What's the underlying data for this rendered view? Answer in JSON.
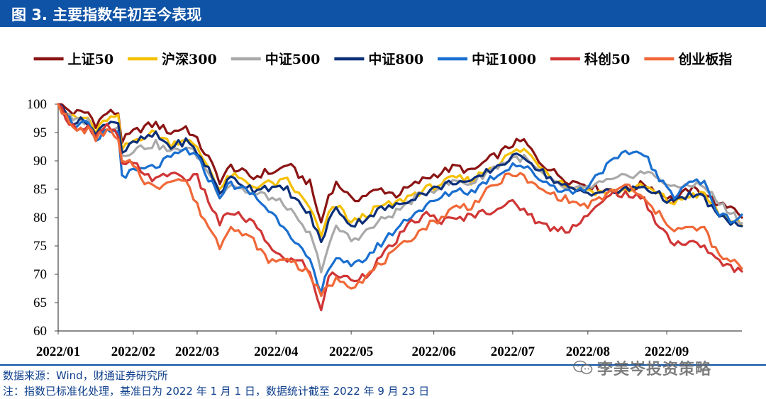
{
  "title": "图 3. 主要指数年初至今表现",
  "footer": {
    "source": "数据来源：Wind，财通证券研究所",
    "note": "注：指数已标准化处理，基准日为 2022 年 1 月 1 日，数据统计截至 2022 年 9 月 23 日"
  },
  "watermark": {
    "text": "李美岑投资策略",
    "icon": "wechat-icon"
  },
  "chart_data": {
    "type": "line",
    "title": "主要指数年初至今表现",
    "xlabel": "",
    "ylabel": "",
    "ylim": [
      60,
      100
    ],
    "yticks": [
      60,
      65,
      70,
      75,
      80,
      85,
      90,
      95,
      100
    ],
    "xlim": [
      0,
      182
    ],
    "xtick_labels": [
      "2022/01",
      "2022/02",
      "2022/03",
      "2022/04",
      "2022/05",
      "2022/06",
      "2022/07",
      "2022/08",
      "2022/09"
    ],
    "xtick_positions": [
      0,
      20,
      37,
      58,
      78,
      100,
      121,
      141,
      162
    ],
    "anchors": [
      0,
      4,
      8,
      10,
      13,
      16,
      17,
      20,
      23,
      26,
      30,
      34,
      37,
      40,
      43,
      46,
      49,
      52,
      55,
      58,
      61,
      64,
      67,
      70,
      72,
      74,
      76,
      78,
      82,
      86,
      90,
      94,
      98,
      102,
      106,
      110,
      114,
      118,
      121,
      124,
      128,
      132,
      136,
      140,
      144,
      148,
      152,
      156,
      160,
      164,
      168,
      172,
      176,
      180,
      182
    ],
    "grid": false,
    "legend_position": "top",
    "series": [
      {
        "name": "上证50",
        "color": "#8b1414",
        "values": [
          100,
          98.5,
          98.5,
          96.5,
          98.5,
          98.5,
          93.5,
          95,
          96,
          96.5,
          95,
          96,
          93.5,
          90.5,
          86.5,
          89,
          88,
          87,
          88,
          88,
          89.5,
          87.5,
          86,
          79,
          84,
          86,
          85,
          83,
          84,
          85,
          84,
          85.5,
          87,
          88,
          89,
          88,
          90,
          91.5,
          93,
          93.5,
          90,
          88,
          86.5,
          86,
          85,
          85,
          85,
          86,
          84.5,
          83,
          85,
          84.5,
          82,
          82,
          80
        ]
      },
      {
        "name": "沪深300",
        "color": "#f5c000",
        "values": [
          100,
          97.5,
          97.5,
          95,
          97.5,
          97.5,
          92,
          93.5,
          94.5,
          95,
          93,
          94,
          92,
          89,
          85,
          87.5,
          86.5,
          85.5,
          86,
          86,
          86.5,
          84,
          82,
          76.5,
          80.5,
          82,
          81,
          79,
          80.5,
          82,
          82.5,
          84,
          85,
          86,
          87,
          86.5,
          88.5,
          90,
          91.5,
          92,
          89.5,
          87,
          85.5,
          85,
          84.5,
          84.5,
          85,
          85.5,
          84,
          82.5,
          84,
          84,
          80.5,
          79.5,
          78.5
        ]
      },
      {
        "name": "中证500",
        "color": "#a9a9a9",
        "values": [
          100,
          97,
          97,
          94,
          96,
          96,
          91,
          92,
          92.5,
          93,
          91.5,
          92.5,
          91,
          88,
          84,
          86,
          85,
          84,
          84,
          83,
          82,
          79,
          77,
          71,
          75,
          78,
          77.5,
          76,
          77.5,
          79.5,
          81,
          83,
          84.5,
          85.5,
          86.5,
          86,
          88,
          89.5,
          90.5,
          90.5,
          88,
          86,
          85,
          85,
          86,
          86.5,
          87.5,
          88,
          87,
          85,
          86,
          85.5,
          82.5,
          80.5,
          79
        ]
      },
      {
        "name": "中证800",
        "color": "#0c2f78",
        "values": [
          100,
          97,
          97,
          94.5,
          97,
          97,
          91.5,
          93,
          94,
          94.5,
          92.5,
          93.5,
          91.5,
          88.5,
          84.5,
          87,
          86,
          85,
          85.5,
          85,
          85,
          82.5,
          80.5,
          75.5,
          79.5,
          81.5,
          80.5,
          78.5,
          80,
          81.5,
          82,
          83.5,
          84.5,
          85.5,
          86.5,
          86,
          88,
          89.5,
          90.5,
          91,
          88.5,
          86.5,
          85,
          84.5,
          84.5,
          84.5,
          85,
          85.5,
          84,
          82.5,
          84,
          83.5,
          80,
          79,
          78.5
        ]
      },
      {
        "name": "中证1000",
        "color": "#1a6fd0",
        "values": [
          100,
          96.5,
          96.5,
          93,
          95.5,
          95,
          87.5,
          88,
          88.5,
          89,
          90.5,
          92,
          90.5,
          87,
          84,
          86,
          85,
          84,
          82,
          80,
          78,
          75,
          72,
          66.5,
          71.5,
          73,
          72.5,
          71,
          73,
          75.5,
          78,
          80.5,
          82,
          83.5,
          85,
          84.5,
          86.5,
          88,
          89.5,
          89,
          87,
          85.5,
          84.5,
          85,
          88,
          90,
          91.5,
          91.5,
          86.5,
          84,
          86.5,
          86,
          80.5,
          79.5,
          80.5
        ]
      },
      {
        "name": "科创50",
        "color": "#d03535",
        "values": [
          100,
          96,
          96,
          94,
          96,
          94.5,
          89,
          89.5,
          88,
          86.5,
          88,
          87,
          87,
          83,
          79,
          81,
          80,
          79,
          76,
          74,
          72,
          73,
          70,
          64,
          69.5,
          70,
          69.5,
          69,
          70,
          73,
          76,
          79,
          80.5,
          79.5,
          79.5,
          80.5,
          81,
          82,
          82.5,
          81.5,
          79,
          78,
          78,
          80,
          82,
          84.5,
          84,
          83,
          78.5,
          75.5,
          75.5,
          75,
          72,
          71,
          70.5
        ]
      },
      {
        "name": "创业板指",
        "color": "#f06838",
        "values": [
          100,
          95.5,
          95.5,
          94,
          95.5,
          93.5,
          89.5,
          89.5,
          86.5,
          85,
          87,
          86.5,
          82,
          78.5,
          75,
          79,
          77,
          76,
          73,
          72,
          73,
          71.5,
          70,
          66,
          68,
          69,
          69,
          68,
          69.5,
          72,
          74,
          76.5,
          78.5,
          80,
          82,
          82,
          84.5,
          86.5,
          88,
          87,
          85,
          84,
          83,
          82,
          83,
          85,
          85.5,
          83,
          80.5,
          78,
          78,
          78,
          73,
          72,
          71
        ]
      }
    ]
  }
}
